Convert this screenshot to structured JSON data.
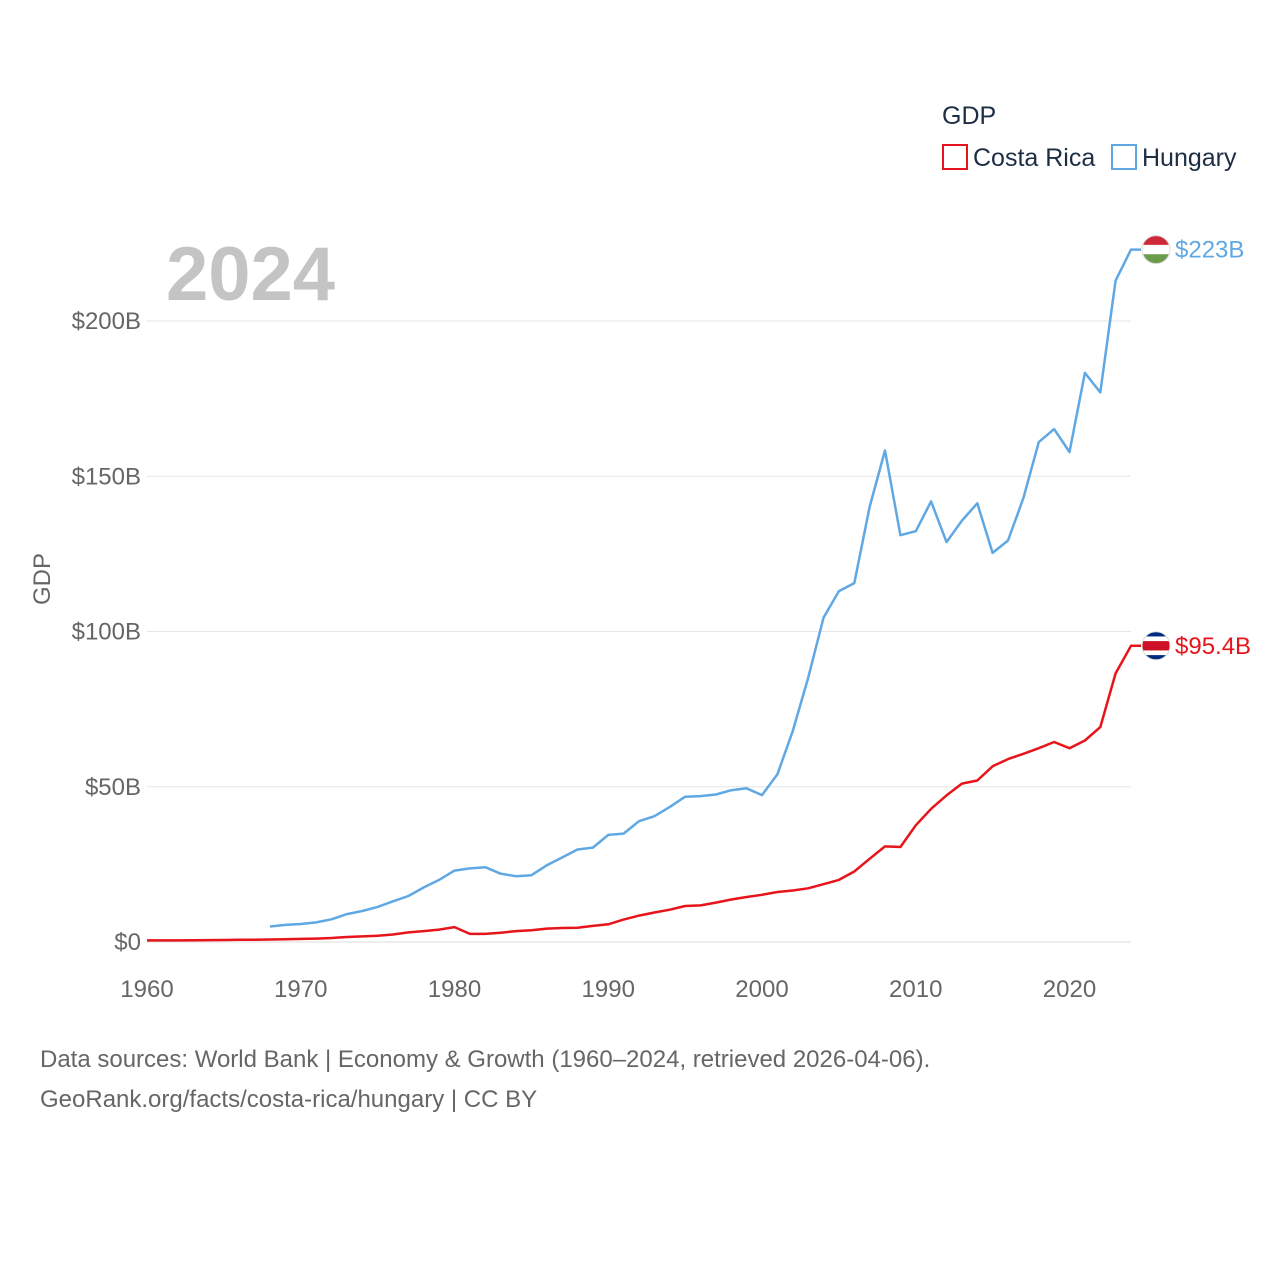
{
  "chart_data": {
    "type": "line",
    "title": "GDP",
    "ylabel": "GDP",
    "year_label": "2024",
    "xlim": [
      1960,
      2024
    ],
    "ylim": [
      0,
      223
    ],
    "x_ticks": [
      1960,
      1970,
      1980,
      1990,
      2000,
      2010,
      2020
    ],
    "y_ticks": [
      {
        "value": 0,
        "label": "$0"
      },
      {
        "value": 50,
        "label": "$50B"
      },
      {
        "value": 100,
        "label": "$100B"
      },
      {
        "value": 150,
        "label": "$150B"
      },
      {
        "value": 200,
        "label": "$200B"
      }
    ],
    "legend": {
      "title": "GDP",
      "placement": "top-right"
    },
    "series": [
      {
        "name": "Costa Rica",
        "color": "#e8141b",
        "end_label": "$95.4B",
        "flag": "costa-rica-flag",
        "x": [
          1960,
          1961,
          1962,
          1963,
          1964,
          1965,
          1966,
          1967,
          1968,
          1969,
          1970,
          1971,
          1972,
          1973,
          1974,
          1975,
          1976,
          1977,
          1978,
          1979,
          1980,
          1981,
          1982,
          1983,
          1984,
          1985,
          1986,
          1987,
          1988,
          1989,
          1990,
          1991,
          1992,
          1993,
          1994,
          1995,
          1996,
          1997,
          1998,
          1999,
          2000,
          2001,
          2002,
          2003,
          2004,
          2005,
          2006,
          2007,
          2008,
          2009,
          2010,
          2011,
          2012,
          2013,
          2014,
          2015,
          2016,
          2017,
          2018,
          2019,
          2020,
          2021,
          2022,
          2023,
          2024
        ],
        "values": [
          0.5,
          0.5,
          0.5,
          0.55,
          0.6,
          0.65,
          0.7,
          0.75,
          0.8,
          0.9,
          1.0,
          1.1,
          1.3,
          1.6,
          1.8,
          2.0,
          2.4,
          3.1,
          3.5,
          4.0,
          4.8,
          2.6,
          2.6,
          3.0,
          3.5,
          3.8,
          4.3,
          4.5,
          4.6,
          5.2,
          5.7,
          7.2,
          8.5,
          9.5,
          10.4,
          11.6,
          11.8,
          12.7,
          13.7,
          14.5,
          15.2,
          16.1,
          16.6,
          17.3,
          18.6,
          20.0,
          22.7,
          26.8,
          30.8,
          30.6,
          37.6,
          42.9,
          47.2,
          51.0,
          52.0,
          56.6,
          58.9,
          60.6,
          62.4,
          64.4,
          62.4,
          64.9,
          69.2,
          86.5,
          95.4
        ]
      },
      {
        "name": "Hungary",
        "color": "#60a8e4",
        "end_label": "$223B",
        "flag": "hungary-flag",
        "x": [
          1968,
          1969,
          1970,
          1971,
          1972,
          1973,
          1974,
          1975,
          1976,
          1977,
          1978,
          1979,
          1980,
          1981,
          1982,
          1983,
          1984,
          1985,
          1986,
          1987,
          1988,
          1989,
          1990,
          1991,
          1992,
          1993,
          1994,
          1995,
          1996,
          1997,
          1998,
          1999,
          2000,
          2001,
          2002,
          2003,
          2004,
          2005,
          2006,
          2007,
          2008,
          2009,
          2010,
          2011,
          2012,
          2013,
          2014,
          2015,
          2016,
          2017,
          2018,
          2019,
          2020,
          2021,
          2022,
          2023,
          2024
        ],
        "values": [
          5.0,
          5.5,
          5.8,
          6.3,
          7.3,
          9.0,
          10.0,
          11.3,
          13.1,
          14.8,
          17.6,
          20.0,
          23.0,
          23.7,
          24.1,
          22.0,
          21.2,
          21.5,
          24.7,
          27.2,
          29.8,
          30.4,
          34.5,
          34.9,
          38.9,
          40.5,
          43.5,
          46.8,
          47.0,
          47.5,
          48.9,
          49.5,
          47.3,
          54.0,
          68.0,
          85.0,
          104.4,
          113.0,
          115.6,
          140.1,
          158.3,
          131.0,
          132.3,
          141.9,
          128.8,
          135.7,
          141.3,
          125.3,
          129.3,
          143.0,
          161.0,
          165.2,
          157.8,
          183.3,
          177.0,
          213.0,
          223.0
        ]
      }
    ]
  },
  "source": {
    "line1": "Data sources: World Bank | Economy & Growth (1960–2024, retrieved 2026-04-06).",
    "line2": "GeoRank.org/facts/costa-rica/hungary | CC BY"
  }
}
